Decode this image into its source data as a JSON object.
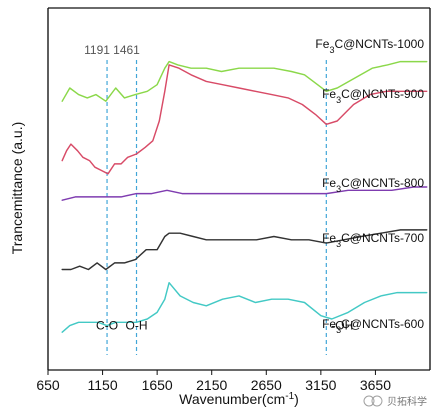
{
  "chart_data": {
    "type": "line",
    "title": "",
    "xlabel": "Wavenumber(cm",
    "xlabel_superscript": "-1",
    "xlabel_suffix": ")",
    "ylabel": "Trancemittance (a.u.)",
    "xlim": [
      650,
      4150
    ],
    "ylim": [
      0,
      100
    ],
    "x_ticks": [
      650,
      1150,
      1650,
      2150,
      2650,
      3150,
      3650
    ],
    "y_ticks": [],
    "grid": false,
    "legend": "labels beside each curve",
    "markers": [
      {
        "value": 1191,
        "label": "1191",
        "color": "#42a6d8"
      },
      {
        "value": 1461,
        "label": "1461",
        "color": "#42a6d8"
      },
      {
        "value": 3200,
        "label": "",
        "color": "#42a6d8"
      }
    ],
    "annotations": [
      {
        "text": "C-O",
        "x": 1191,
        "y": 8
      },
      {
        "text": "O-H",
        "x": 1461,
        "y": 8
      },
      {
        "text": "-OH",
        "x": 3200,
        "y": 8
      }
    ],
    "watermark": "贝拓科学",
    "series": [
      {
        "name": "Fe3C@NCNTs-1000",
        "label_main": "Fe",
        "label_sub": "3",
        "label_tail": "C@NCNTs-1000",
        "color": "#8bd84a",
        "x": [
          780,
          850,
          930,
          1010,
          1090,
          1180,
          1270,
          1350,
          1450,
          1560,
          1650,
          1720,
          1760,
          1840,
          1960,
          2100,
          2240,
          2400,
          2560,
          2720,
          2880,
          3000,
          3120,
          3200,
          3300,
          3460,
          3620,
          3760,
          3880,
          4020,
          4120
        ],
        "y": [
          76,
          80,
          78,
          77,
          78,
          76,
          80,
          77,
          78,
          79,
          81,
          86,
          88,
          87,
          86,
          86,
          85,
          86,
          86,
          86,
          85,
          84,
          81,
          79,
          80,
          83,
          86,
          87,
          88,
          88,
          88
        ]
      },
      {
        "name": "Fe3C@NCNTs-900",
        "label_main": "Fe",
        "label_sub": "3",
        "label_tail": "C@NCNTs-900",
        "color": "#d84b67",
        "x": [
          780,
          820,
          860,
          920,
          970,
          1030,
          1080,
          1140,
          1200,
          1260,
          1320,
          1380,
          1460,
          1540,
          1610,
          1670,
          1720,
          1760,
          1850,
          1960,
          2100,
          2250,
          2400,
          2550,
          2700,
          2850,
          2980,
          3100,
          3200,
          3300,
          3450,
          3600,
          3750,
          3900,
          4040,
          4120
        ],
        "y": [
          58,
          61,
          63,
          61,
          59,
          58,
          56,
          55,
          54,
          57,
          57,
          59,
          60,
          62,
          64,
          70,
          79,
          87,
          86,
          84,
          82,
          81,
          80,
          79,
          78,
          77,
          75,
          72,
          69,
          70,
          75,
          78,
          79,
          79,
          79,
          79
        ]
      },
      {
        "name": "Fe3C@NCNTs-800",
        "label_main": "Fe",
        "label_sub": "3",
        "label_tail": "C@NCNTs-800",
        "color": "#7f3cb0",
        "x": [
          780,
          900,
          1040,
          1180,
          1320,
          1460,
          1600,
          1740,
          1880,
          2020,
          2200,
          2400,
          2600,
          2800,
          3000,
          3200,
          3400,
          3600,
          3800,
          4000,
          4120
        ],
        "y": [
          46,
          47,
          47,
          47,
          47,
          48,
          48,
          49,
          48,
          48,
          48,
          48,
          48,
          48,
          48,
          48,
          49,
          49,
          49,
          50,
          50
        ]
      },
      {
        "name": "Fe3C@NCNTs-700",
        "label_main": "Fe",
        "label_sub": "3",
        "label_tail": "C@NCNTs-700",
        "color": "#333333",
        "x": [
          780,
          860,
          940,
          1020,
          1100,
          1180,
          1260,
          1350,
          1450,
          1550,
          1650,
          1720,
          1760,
          1860,
          1980,
          2100,
          2250,
          2400,
          2560,
          2720,
          2880,
          3040,
          3200,
          3360,
          3520,
          3700,
          3880,
          4050,
          4120
        ],
        "y": [
          25,
          25,
          26,
          25,
          27,
          25,
          27,
          27,
          28,
          31,
          31,
          35,
          36,
          36,
          35,
          34,
          34,
          34,
          34,
          35,
          34,
          34,
          33,
          34,
          35,
          36,
          37,
          37,
          37
        ]
      },
      {
        "name": "Fe3C@NCNTs-600",
        "label_main": "Fe",
        "label_sub": "3",
        "label_tail": "C@NCNTs-600",
        "color": "#43c9c5",
        "x": [
          780,
          850,
          930,
          1020,
          1110,
          1190,
          1270,
          1360,
          1460,
          1560,
          1650,
          1720,
          1760,
          1860,
          1980,
          2100,
          2250,
          2400,
          2550,
          2700,
          2850,
          3000,
          3150,
          3250,
          3400,
          3550,
          3700,
          3850,
          4000,
          4120
        ],
        "y": [
          6,
          8,
          9,
          9,
          9,
          8,
          9,
          9,
          9,
          10,
          12,
          16,
          21,
          17,
          15,
          14,
          16,
          17,
          15,
          16,
          16,
          15,
          11,
          10,
          12,
          15,
          17,
          18,
          18,
          18
        ]
      }
    ]
  }
}
